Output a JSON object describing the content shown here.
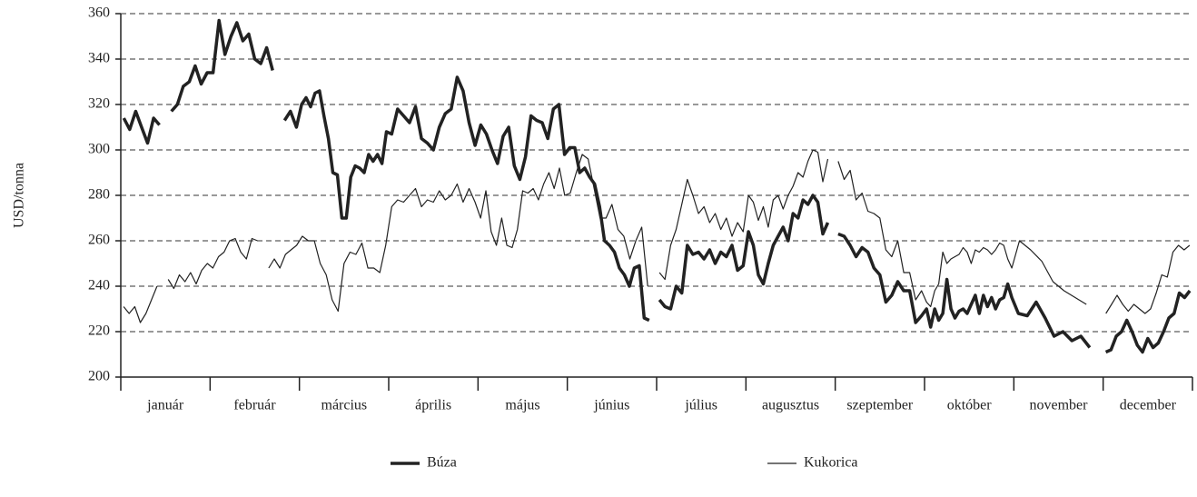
{
  "chart_data": {
    "type": "line",
    "y_label": "USD/tonna",
    "categories": [
      "január",
      "február",
      "március",
      "április",
      "május",
      "június",
      "július",
      "augusztus",
      "szeptember",
      "október",
      "november",
      "december"
    ],
    "ylim": [
      200,
      360
    ],
    "yticks": [
      200,
      220,
      240,
      260,
      280,
      300,
      320,
      340,
      360
    ],
    "grid": true,
    "legend": "bottom",
    "series": [
      {
        "name": "Búza",
        "color": "#222222",
        "line_width": 3.5,
        "values": [
          [
            314,
            309,
            317,
            310,
            303,
            314,
            311,
            null,
            317,
            320,
            328,
            330,
            337,
            329,
            334
          ],
          [
            334,
            357,
            342,
            350,
            356,
            348,
            351,
            340,
            338,
            345,
            335,
            null,
            313,
            317,
            310
          ],
          [
            320,
            323,
            319,
            325,
            326,
            315,
            305,
            290,
            289,
            270,
            270,
            288,
            293,
            292,
            290,
            298,
            295,
            298,
            294,
            308
          ],
          [
            307,
            318,
            315,
            312,
            319,
            305,
            303,
            300,
            310,
            316,
            318,
            332,
            326,
            312,
            302
          ],
          [
            311,
            307,
            300,
            294,
            306,
            310,
            293,
            287,
            297,
            315,
            313,
            312,
            305,
            318,
            320,
            298
          ],
          [
            301,
            301,
            290,
            292,
            288,
            285,
            275,
            260,
            258,
            255,
            248,
            245,
            240,
            248,
            249,
            226,
            225,
            null
          ],
          [
            234,
            231,
            230,
            240,
            237,
            258,
            254,
            255,
            252,
            256,
            250,
            255,
            253,
            258,
            247,
            249
          ],
          [
            264,
            258,
            245,
            241,
            250,
            258,
            262,
            266,
            260,
            272,
            270,
            278,
            276,
            280,
            277,
            263,
            268,
            null
          ],
          [
            263,
            262,
            258,
            253,
            257,
            255,
            248,
            245,
            233,
            236,
            242,
            238,
            238,
            224,
            227
          ],
          [
            230,
            222,
            230,
            225,
            228,
            243,
            230,
            226,
            229,
            230,
            228,
            232,
            236,
            228,
            236,
            231,
            235,
            230,
            234,
            235,
            241,
            235
          ],
          [
            228,
            227,
            233,
            226,
            218,
            220,
            216,
            218,
            213,
            null
          ],
          [
            211,
            212,
            218,
            220,
            225,
            220,
            214,
            211,
            217,
            213,
            215,
            220,
            226,
            228,
            237,
            235,
            238
          ]
        ]
      },
      {
        "name": "Kukorica",
        "color": "#222222",
        "line_width": 1.2,
        "values": [
          [
            231,
            228,
            231,
            224,
            228,
            234,
            240,
            null,
            243,
            239,
            245,
            242,
            246,
            241,
            247,
            250
          ],
          [
            248,
            253,
            255,
            260,
            261,
            255,
            252,
            261,
            260,
            null,
            248,
            252,
            248,
            254,
            256,
            258
          ],
          [
            262,
            260,
            260,
            250,
            245,
            234,
            229,
            250,
            255,
            254,
            259,
            248,
            248,
            246,
            258
          ],
          [
            275,
            278,
            277,
            280,
            283,
            275,
            278,
            277,
            282,
            278,
            280,
            285,
            277,
            283,
            277
          ],
          [
            270,
            282,
            264,
            258,
            270,
            258,
            257,
            265,
            282,
            281,
            283,
            278,
            285,
            290,
            283,
            292,
            280
          ],
          [
            281,
            290,
            298,
            296,
            283,
            270,
            270,
            276,
            265,
            262,
            252,
            260,
            266,
            240,
            null
          ],
          [
            246,
            243,
            258,
            265,
            276,
            287,
            280,
            272,
            275,
            268,
            272,
            265,
            270,
            262,
            268,
            264
          ],
          [
            280,
            277,
            269,
            275,
            266,
            278,
            280,
            274,
            280,
            284,
            290,
            288,
            295,
            300,
            299,
            286,
            296,
            null
          ],
          [
            295,
            287,
            291,
            278,
            281,
            273,
            272,
            270,
            256,
            253,
            260,
            246,
            246,
            234,
            238
          ],
          [
            233,
            231,
            238,
            241,
            255,
            250,
            252,
            253,
            254,
            257,
            255,
            250,
            256,
            255,
            257,
            256,
            254,
            256,
            259,
            258,
            252,
            248
          ],
          [
            260,
            256,
            251,
            242,
            238,
            235,
            232,
            null
          ],
          [
            228,
            232,
            236,
            232,
            229,
            232,
            230,
            228,
            230,
            237,
            245,
            244,
            255,
            258,
            256,
            258
          ]
        ]
      }
    ]
  }
}
